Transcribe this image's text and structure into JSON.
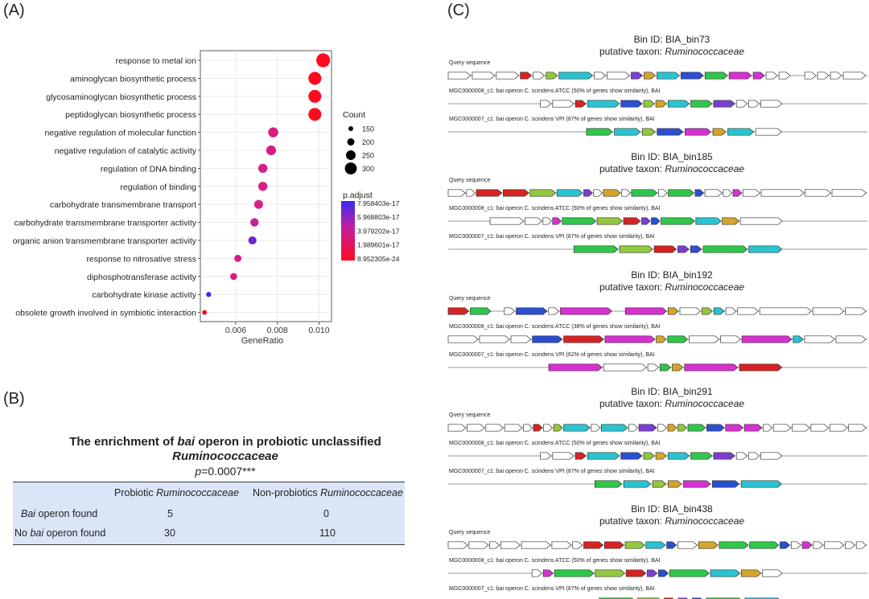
{
  "panels": {
    "a": "(A)",
    "b": "(B)",
    "c": "(C)"
  },
  "chart_data": {
    "type": "scatter",
    "title": "",
    "xlabel": "GeneRatio",
    "ylabel": "",
    "xlim": [
      0.0043,
      0.0106
    ],
    "xticks": [
      "0.006",
      "0.008",
      "0.010"
    ],
    "xtick_values": [
      0.006,
      0.008,
      0.01
    ],
    "terms": [
      "response to metal ion",
      "aminoglycan biosynthetic process",
      "glycosaminoglycan biosynthetic process",
      "peptidoglycan biosynthetic process",
      "negative regulation of molecular function",
      "negative regulation of catalytic activity",
      "regulation of DNA binding",
      "regulation of binding",
      "carbohydrate transmembrane transport",
      "carbohydrate transmembrane transporter activity",
      "organic anion transmembrane transporter activity",
      "response to nitrosative stress",
      "diphosphotransferase activity",
      "carbohydrate kinase activity",
      "obsolete growth involved in symbiotic interaction"
    ],
    "gene_ratio": [
      0.0102,
      0.0098,
      0.0098,
      0.0098,
      0.0078,
      0.0077,
      0.0073,
      0.0073,
      0.0071,
      0.0069,
      0.0068,
      0.0061,
      0.0059,
      0.0047,
      0.0045
    ],
    "count": [
      340,
      320,
      320,
      320,
      260,
      255,
      240,
      240,
      235,
      225,
      220,
      200,
      195,
      155,
      148
    ],
    "p_adjust": [
      1e-24,
      1e-24,
      1e-24,
      1e-24,
      5e-19,
      5e-19,
      5e-19,
      5e-19,
      1e-18,
      2e-18,
      2e-17,
      5e-19,
      5e-19,
      7.9e-17,
      1e-24
    ],
    "size_legend": {
      "title": "Count",
      "labels": [
        "150",
        "200",
        "250",
        "300"
      ],
      "values": [
        150,
        200,
        250,
        300
      ]
    },
    "color_legend": {
      "title": "p.adjust",
      "labels": [
        "7.958403e-17",
        "5.968803e-17",
        "3.979202e-17",
        "1.989601e-17",
        "8.952305e-24"
      ],
      "low_color": "#ff0a1e",
      "mid_color": "#d4208c",
      "high_color": "#3a2bf0"
    }
  },
  "enrichment": {
    "title_pre": "The enrichment of ",
    "title_italic": "bai",
    "title_post": " operon in probiotic unclassified",
    "title_line2": "Ruminococcaceae",
    "p_label": "p",
    "p_value": "=0.0007***",
    "col1_pre": "Probiotic ",
    "col1_italic": "Ruminococcaceae",
    "col2_pre": "Non-probiotics ",
    "col2_italic": "Ruminococcaceae",
    "rows": [
      {
        "label_italic": "Bai",
        "label_post": " operon found",
        "label_pre": "",
        "v1": "5",
        "v2": "0"
      },
      {
        "label_pre": "No ",
        "label_italic": "bai",
        "label_post": " operon found",
        "v1": "30",
        "v2": "110"
      }
    ]
  },
  "operons": [
    {
      "bin_label": "Bin ID: BIA_bin73",
      "taxon_label": "putative taxon: ",
      "taxon": "Ruminococcaceae",
      "tracks": [
        {
          "label": "Query sequence",
          "genes": [
            [
              "w",
              2
            ],
            [
              "w",
              2
            ],
            [
              "w",
              2
            ],
            [
              "r",
              1
            ],
            [
              "w",
              1
            ],
            [
              "lg",
              1
            ],
            [
              "c",
              3
            ],
            [
              "w",
              1
            ],
            [
              "w",
              2
            ],
            [
              "p",
              1
            ],
            [
              "y",
              1
            ],
            [
              "c",
              2
            ],
            [
              "b",
              2
            ],
            [
              "g",
              2
            ],
            [
              "m",
              2
            ],
            [
              "m",
              1
            ],
            [
              "w",
              1
            ],
            [
              "w",
              1
            ],
            [
              "gap",
              1
            ],
            [
              "w",
              1
            ],
            [
              "w",
              1
            ],
            [
              "w",
              1
            ],
            [
              "w",
              2
            ]
          ]
        },
        {
          "label": "MGC0000008_c1: bai operon C. scindens ATCC (50% of genes show similarity), BAI",
          "pad": 0.22,
          "genes": [
            [
              "w",
              1
            ],
            [
              "w",
              2
            ],
            [
              "r",
              1
            ],
            [
              "c",
              3
            ],
            [
              "b",
              2
            ],
            [
              "lg",
              1
            ],
            [
              "y",
              1
            ],
            [
              "c",
              2
            ],
            [
              "g",
              2
            ],
            [
              "p",
              2
            ],
            [
              "w",
              1
            ],
            [
              "w",
              1
            ],
            [
              "w",
              2
            ]
          ]
        },
        {
          "label": "MGC0000007_c1: bai operon C. scindens VPI (87% of genes show similarity), BAI",
          "pad": 0.33,
          "genes": [
            [
              "g",
              2
            ],
            [
              "c",
              2
            ],
            [
              "lg",
              1
            ],
            [
              "b",
              2
            ],
            [
              "m",
              2
            ],
            [
              "y",
              1
            ],
            [
              "c",
              2
            ],
            [
              "w",
              2
            ]
          ]
        }
      ]
    },
    {
      "bin_label": "Bin ID: BIA_bin185",
      "taxon_label": "putative taxon: ",
      "taxon": "Ruminococcaceae",
      "tracks": [
        {
          "label": "Query sequence",
          "genes": [
            [
              "w",
              2
            ],
            [
              "w",
              1
            ],
            [
              "r",
              3
            ],
            [
              "r",
              3
            ],
            [
              "lg",
              3
            ],
            [
              "c",
              3
            ],
            [
              "p",
              1
            ],
            [
              "w",
              1
            ],
            [
              "y",
              2
            ],
            [
              "w",
              1
            ],
            [
              "g",
              3
            ],
            [
              "w",
              1
            ],
            [
              "g",
              3
            ],
            [
              "b",
              1
            ],
            [
              "w",
              2
            ],
            [
              "w",
              1
            ],
            [
              "m",
              1
            ],
            [
              "w",
              2
            ],
            [
              "w",
              5
            ],
            [
              "w",
              3
            ],
            [
              "w",
              4
            ]
          ]
        },
        {
          "label": "MGC0000008_c1: bai operon C. scindens ATCC (50% of genes show similarity), BAI",
          "pad": 0.1,
          "genes": [
            [
              "w",
              4
            ],
            [
              "w",
              2
            ],
            [
              "w",
              1
            ],
            [
              "m",
              1
            ],
            [
              "g",
              4
            ],
            [
              "lg",
              3
            ],
            [
              "r",
              2
            ],
            [
              "p",
              1
            ],
            [
              "b",
              1
            ],
            [
              "g",
              4
            ],
            [
              "c",
              3
            ],
            [
              "y",
              2
            ],
            [
              "w",
              5
            ]
          ]
        },
        {
          "label": "MGC0000007_c1: bai operon C. scindens VPI (87% of genes show similarity), BAI",
          "pad": 0.3,
          "genes": [
            [
              "g",
              4
            ],
            [
              "lg",
              3
            ],
            [
              "r",
              2
            ],
            [
              "p",
              1
            ],
            [
              "b",
              1
            ],
            [
              "g",
              4
            ],
            [
              "c",
              3
            ]
          ]
        }
      ]
    },
    {
      "bin_label": "Bin ID: BIA_bin192",
      "taxon_label": "putative taxon: ",
      "taxon": "Ruminococcaceae",
      "tracks": [
        {
          "label": "Query sequence",
          "genes": [
            [
              "r",
              2
            ],
            [
              "g",
              2
            ],
            [
              "gap",
              1
            ],
            [
              "w",
              1
            ],
            [
              "b",
              3
            ],
            [
              "w",
              1
            ],
            [
              "m",
              5
            ],
            [
              "gap",
              1
            ],
            [
              "m",
              4
            ],
            [
              "y",
              1
            ],
            [
              "w",
              2
            ],
            [
              "lg",
              1
            ],
            [
              "c",
              1
            ],
            [
              "w",
              1
            ],
            [
              "w",
              2
            ],
            [
              "w",
              5
            ],
            [
              "w",
              3
            ],
            [
              "w",
              2
            ]
          ]
        },
        {
          "label": "MGC0000008_c1: bai operon C. scindens ATCC (38% of genes show similarity), BAI",
          "genes": [
            [
              "w",
              3
            ],
            [
              "w",
              3
            ],
            [
              "w",
              2
            ],
            [
              "b",
              3
            ],
            [
              "r",
              4
            ],
            [
              "m",
              5
            ],
            [
              "y",
              1
            ],
            [
              "g",
              2
            ],
            [
              "w",
              3
            ],
            [
              "w",
              2
            ],
            [
              "m",
              5
            ],
            [
              "c",
              1
            ],
            [
              "w",
              3
            ],
            [
              "w",
              3
            ]
          ]
        },
        {
          "label": "MGC0000007_c1: bai operon C. scindens VPI (62% of genes show similarity), BAI",
          "pad": 0.24,
          "genes": [
            [
              "m",
              5
            ],
            [
              "w",
              4
            ],
            [
              "w",
              1
            ],
            [
              "g",
              1
            ],
            [
              "y",
              1
            ],
            [
              "m",
              5
            ],
            [
              "r",
              4
            ]
          ]
        }
      ]
    },
    {
      "bin_label": "Bin ID: BIA_bin291",
      "taxon_label": "putative taxon: ",
      "taxon": "Ruminococcaceae",
      "tracks": [
        {
          "label": "Query sequence",
          "genes": [
            [
              "w",
              2
            ],
            [
              "w",
              2
            ],
            [
              "w",
              2
            ],
            [
              "w",
              2
            ],
            [
              "w",
              1
            ],
            [
              "r",
              1
            ],
            [
              "w",
              1
            ],
            [
              "lg",
              1
            ],
            [
              "c",
              3
            ],
            [
              "w",
              1
            ],
            [
              "c",
              3
            ],
            [
              "w",
              1
            ],
            [
              "p",
              2
            ],
            [
              "w",
              1
            ],
            [
              "y",
              1
            ],
            [
              "lg",
              1
            ],
            [
              "g",
              2
            ],
            [
              "b",
              2
            ],
            [
              "m",
              2
            ],
            [
              "m",
              2
            ],
            [
              "w",
              1
            ],
            [
              "w",
              2
            ],
            [
              "w",
              2
            ],
            [
              "w",
              2
            ],
            [
              "w",
              2
            ],
            [
              "w",
              2
            ]
          ]
        },
        {
          "label": "MGC0000008_c1: bai operon C. scindens ATCC (50% of genes show similarity), BAI",
          "pad": 0.22,
          "genes": [
            [
              "w",
              1
            ],
            [
              "w",
              2
            ],
            [
              "r",
              1
            ],
            [
              "c",
              3
            ],
            [
              "b",
              2
            ],
            [
              "lg",
              1
            ],
            [
              "y",
              1
            ],
            [
              "c",
              2
            ],
            [
              "g",
              2
            ],
            [
              "p",
              2
            ],
            [
              "w",
              1
            ],
            [
              "w",
              1
            ],
            [
              "w",
              2
            ]
          ]
        },
        {
          "label": "MGC0000007_c1: bai operon C. scindens VPI (87% of genes show similarity), BAI",
          "pad": 0.35,
          "genes": [
            [
              "g",
              2
            ],
            [
              "c",
              2
            ],
            [
              "lg",
              1
            ],
            [
              "y",
              1
            ],
            [
              "m",
              2
            ],
            [
              "b",
              2
            ],
            [
              "c",
              3
            ]
          ]
        }
      ]
    },
    {
      "bin_label": "Bin ID: BIA_bin438",
      "taxon_label": "putative taxon: ",
      "taxon": "Ruminococcaceae",
      "tracks": [
        {
          "label": "Query sequence",
          "genes": [
            [
              "w",
              2
            ],
            [
              "w",
              2
            ],
            [
              "w",
              1
            ],
            [
              "w",
              2
            ],
            [
              "w",
              3
            ],
            [
              "w",
              2
            ],
            [
              "w",
              1
            ],
            [
              "r",
              2
            ],
            [
              "r",
              2
            ],
            [
              "lg",
              2
            ],
            [
              "c",
              2
            ],
            [
              "b",
              1
            ],
            [
              "w",
              2
            ],
            [
              "y",
              2
            ],
            [
              "g",
              3
            ],
            [
              "g",
              3
            ],
            [
              "b",
              1
            ],
            [
              "w",
              1
            ],
            [
              "m",
              1
            ],
            [
              "w",
              1
            ],
            [
              "w",
              2
            ],
            [
              "w",
              1
            ],
            [
              "w",
              1
            ]
          ]
        },
        {
          "label": "MGC0000008_c1: bai operon C. scindens ATCC (50% of genes show similarity), BAI",
          "pad": 0.2,
          "genes": [
            [
              "w",
              1
            ],
            [
              "m",
              1
            ],
            [
              "g",
              4
            ],
            [
              "lg",
              3
            ],
            [
              "r",
              2
            ],
            [
              "p",
              1
            ],
            [
              "b",
              1
            ],
            [
              "g",
              4
            ],
            [
              "c",
              3
            ],
            [
              "y",
              2
            ],
            [
              "w",
              2
            ]
          ]
        },
        {
          "label": "MGC0000007_c1: bai operon C. scindens VPI (87% of genes show similarity), BAI",
          "pad": 0.36,
          "genes": [
            [
              "g",
              3
            ],
            [
              "lg",
              2
            ],
            [
              "r",
              1
            ],
            [
              "p",
              1
            ],
            [
              "b",
              1
            ],
            [
              "g",
              3
            ],
            [
              "c",
              3
            ]
          ]
        }
      ]
    }
  ],
  "gene_colors": {
    "w": "#ffffff",
    "r": "#d62322",
    "lg": "#92c83e",
    "c": "#29c4d0",
    "b": "#2b4fd0",
    "g": "#2fc74b",
    "m": "#d631cf",
    "p": "#7b3fd0",
    "y": "#d4a52a"
  }
}
